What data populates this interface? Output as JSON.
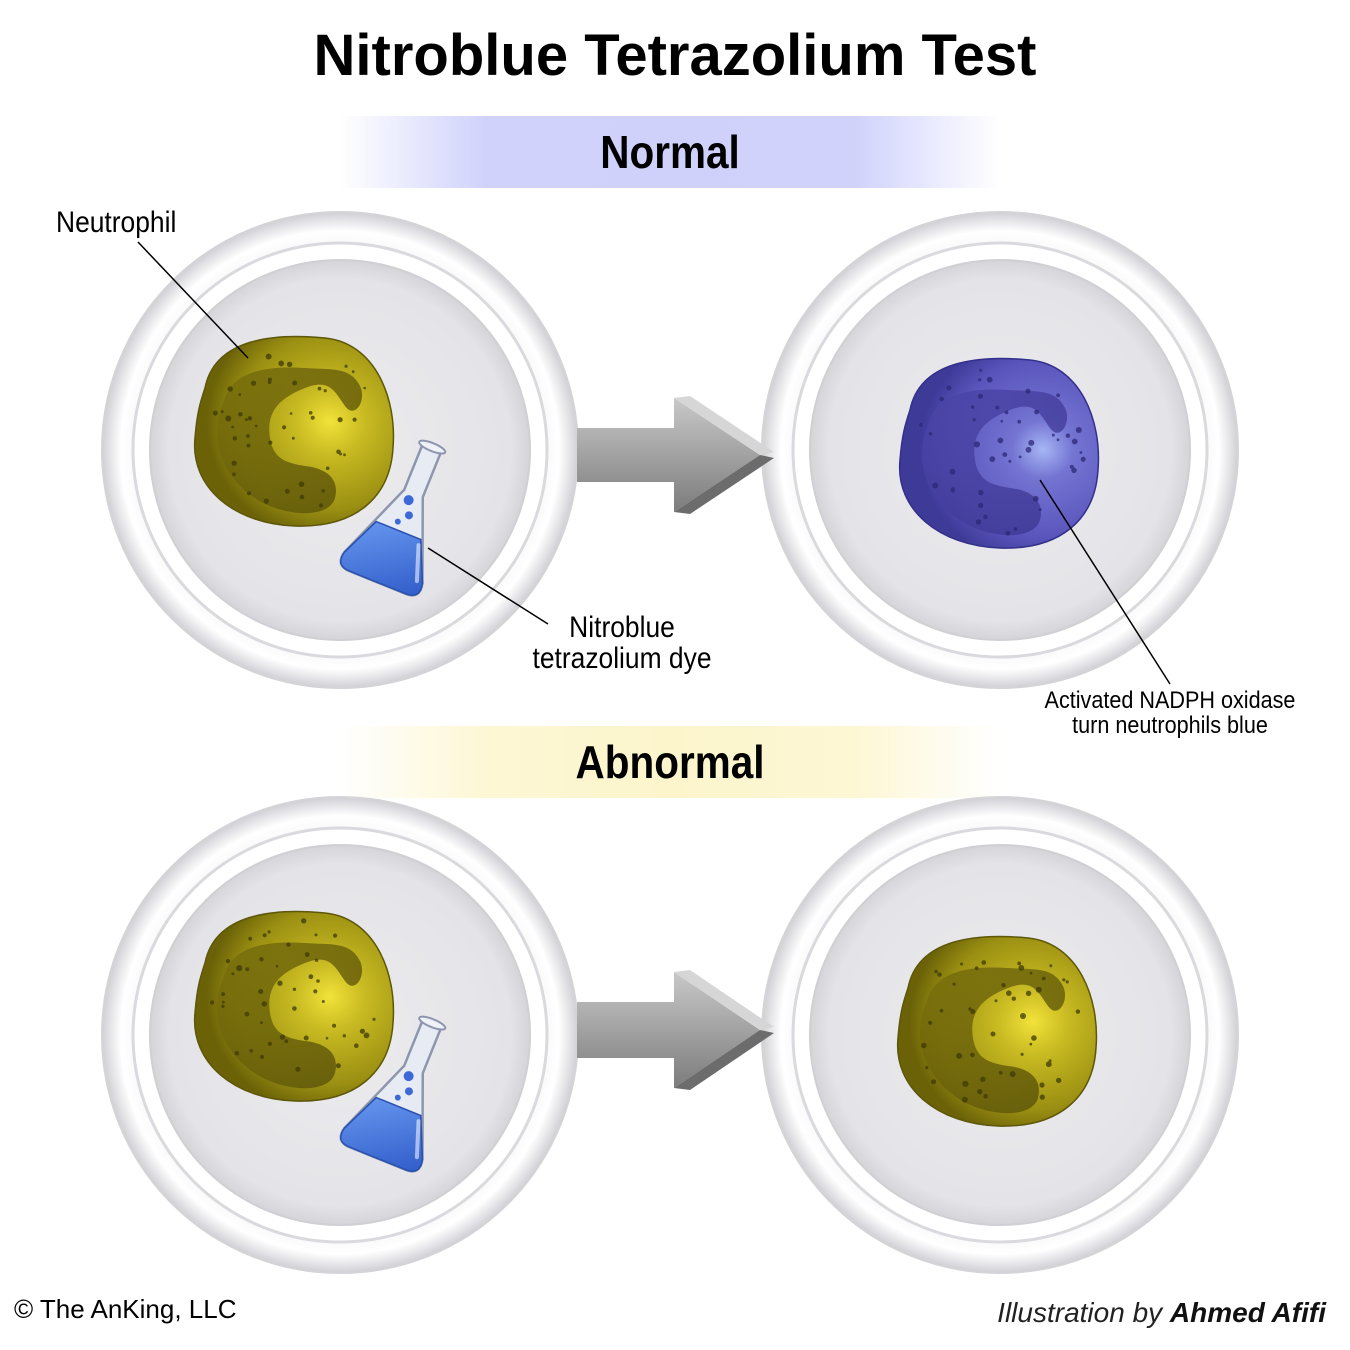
{
  "title": "Nitroblue Tetrazolium Test",
  "sections": {
    "normal": {
      "label": "Normal",
      "band_color": "#d0d2fc"
    },
    "abnormal": {
      "label": "Abnormal",
      "band_color": "#fcf5cc"
    }
  },
  "labels": {
    "neutrophil": "Neutrophil",
    "dye_line1": "Nitroblue",
    "dye_line2": "tetrazolium dye",
    "nadph_line1": "Activated NADPH oxidase",
    "nadph_line2": "turn neutrophils blue"
  },
  "colors": {
    "neutrophil_yellow": "#b8ac1c",
    "neutrophil_blue": "#6a66c8",
    "dye_blue": "#4a78e0",
    "arrow_gray": "#9a9a9a",
    "dish_rim": "#e8e8ec"
  },
  "footer": {
    "copyright": "© The AnKing, LLC",
    "credit_prefix": "Illustration by ",
    "credit_name": "Ahmed Afifi"
  }
}
